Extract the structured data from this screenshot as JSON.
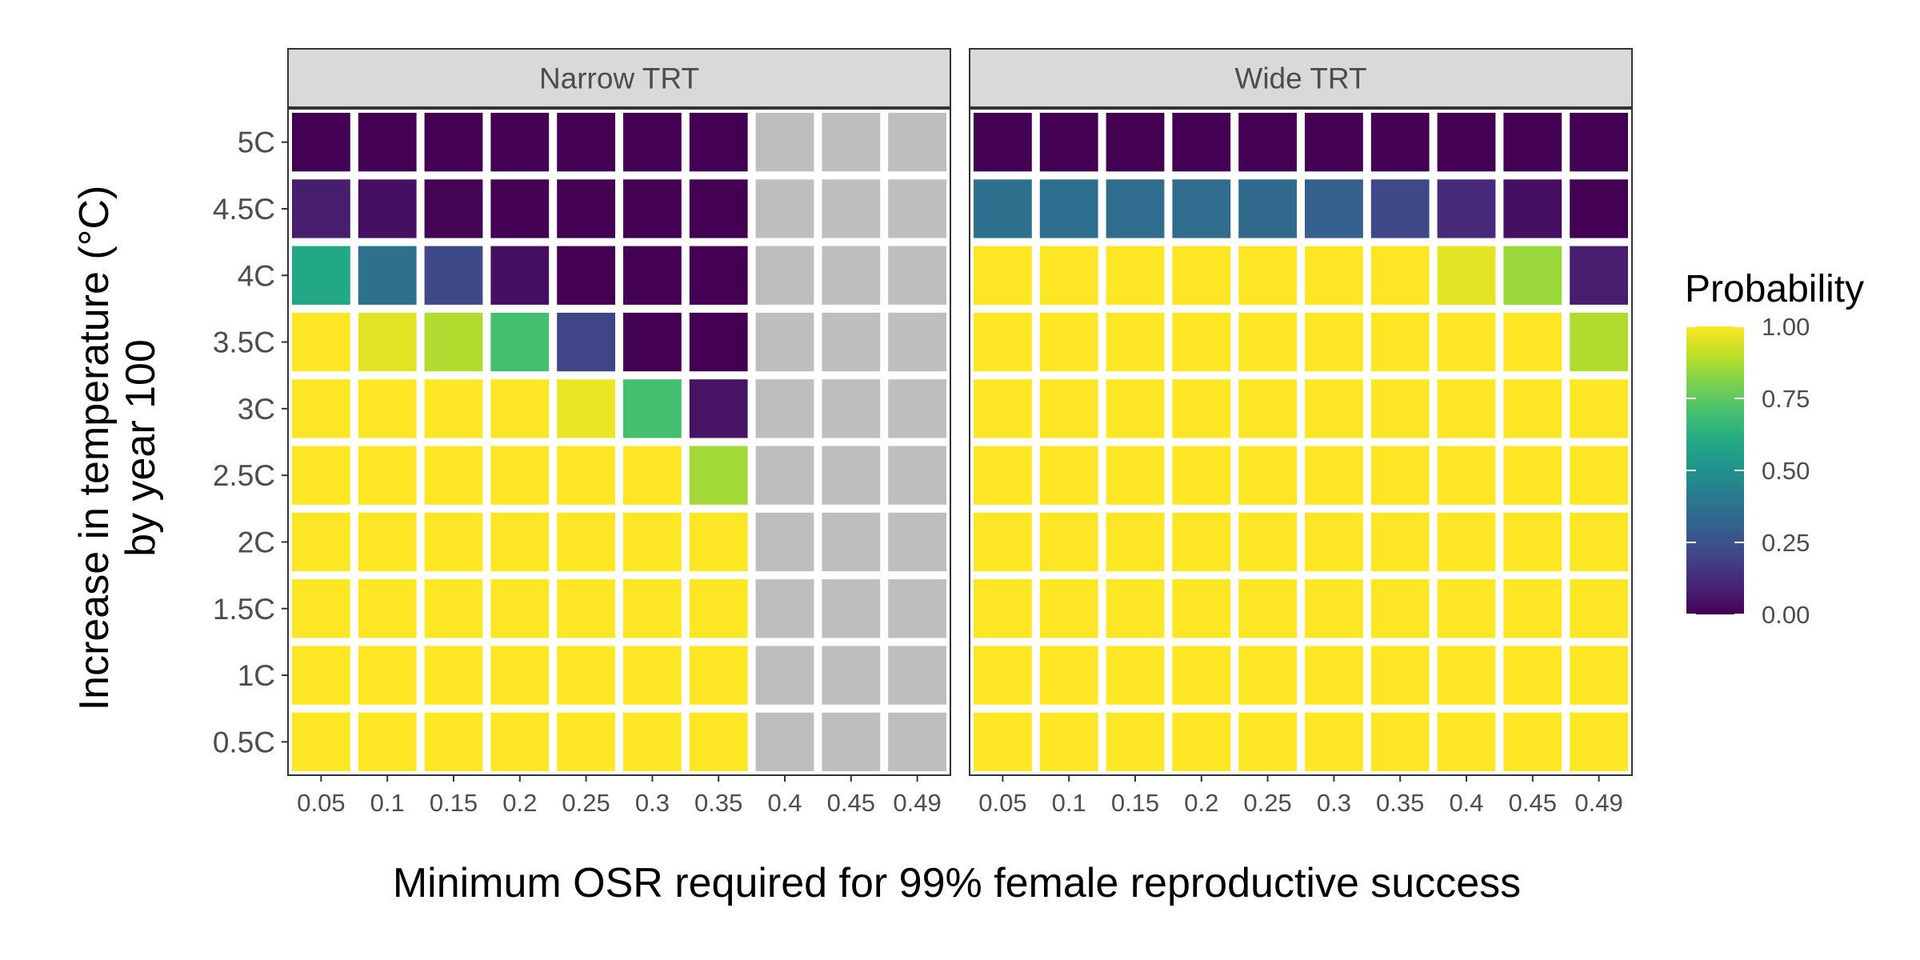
{
  "chart_data": {
    "type": "heatmap",
    "xlabel": "Minimum OSR required for 99% female reproductive success",
    "ylabel": [
      "Increase in temperature (°C)",
      "by year 100"
    ],
    "x": [
      "0.05",
      "0.1",
      "0.15",
      "0.2",
      "0.25",
      "0.3",
      "0.35",
      "0.4",
      "0.45",
      "0.49"
    ],
    "y": [
      "5C",
      "4.5C",
      "4C",
      "3.5C",
      "3C",
      "2.5C",
      "2C",
      "1.5C",
      "1C",
      "0.5C"
    ],
    "legend": {
      "title": "Probability",
      "placement": "right",
      "ticks": [
        "1.00",
        "0.75",
        "0.50",
        "0.25",
        "0.00"
      ],
      "tick_values": [
        1.0,
        0.75,
        0.5,
        0.25,
        0.0
      ],
      "colormap": "viridis",
      "na_color": "#bebebe"
    },
    "panels": [
      {
        "name": "Narrow TRT",
        "values": [
          [
            0.0,
            0.0,
            0.0,
            0.0,
            0.0,
            0.0,
            0.0,
            null,
            null,
            null
          ],
          [
            0.08,
            0.04,
            0.01,
            0.0,
            0.0,
            0.0,
            0.0,
            null,
            null,
            null
          ],
          [
            0.6,
            0.37,
            0.22,
            0.04,
            0.0,
            0.0,
            0.0,
            null,
            null,
            null
          ],
          [
            1.0,
            0.96,
            0.88,
            0.7,
            0.2,
            0.0,
            0.0,
            null,
            null,
            null
          ],
          [
            1.0,
            1.0,
            1.0,
            1.0,
            0.97,
            0.7,
            0.05,
            null,
            null,
            null
          ],
          [
            1.0,
            1.0,
            1.0,
            1.0,
            1.0,
            1.0,
            0.86,
            null,
            null,
            null
          ],
          [
            1.0,
            1.0,
            1.0,
            1.0,
            1.0,
            1.0,
            1.0,
            null,
            null,
            null
          ],
          [
            1.0,
            1.0,
            1.0,
            1.0,
            1.0,
            1.0,
            1.0,
            null,
            null,
            null
          ],
          [
            1.0,
            1.0,
            1.0,
            1.0,
            1.0,
            1.0,
            1.0,
            null,
            null,
            null
          ],
          [
            1.0,
            1.0,
            1.0,
            1.0,
            1.0,
            1.0,
            1.0,
            null,
            null,
            null
          ]
        ]
      },
      {
        "name": "Wide TRT",
        "values": [
          [
            0.0,
            0.0,
            0.0,
            0.0,
            0.0,
            0.0,
            0.0,
            0.0,
            0.0,
            0.0
          ],
          [
            0.37,
            0.36,
            0.35,
            0.35,
            0.34,
            0.3,
            0.22,
            0.12,
            0.04,
            0.0
          ],
          [
            1.0,
            1.0,
            1.0,
            1.0,
            1.0,
            1.0,
            1.0,
            0.96,
            0.85,
            0.08
          ],
          [
            1.0,
            1.0,
            1.0,
            1.0,
            1.0,
            1.0,
            1.0,
            1.0,
            1.0,
            0.88
          ],
          [
            1.0,
            1.0,
            1.0,
            1.0,
            1.0,
            1.0,
            1.0,
            1.0,
            1.0,
            1.0
          ],
          [
            1.0,
            1.0,
            1.0,
            1.0,
            1.0,
            1.0,
            1.0,
            1.0,
            1.0,
            1.0
          ],
          [
            1.0,
            1.0,
            1.0,
            1.0,
            1.0,
            1.0,
            1.0,
            1.0,
            1.0,
            1.0
          ],
          [
            1.0,
            1.0,
            1.0,
            1.0,
            1.0,
            1.0,
            1.0,
            1.0,
            1.0,
            1.0
          ],
          [
            1.0,
            1.0,
            1.0,
            1.0,
            1.0,
            1.0,
            1.0,
            1.0,
            1.0,
            1.0
          ],
          [
            1.0,
            1.0,
            1.0,
            1.0,
            1.0,
            1.0,
            1.0,
            1.0,
            1.0,
            1.0
          ]
        ]
      }
    ]
  }
}
